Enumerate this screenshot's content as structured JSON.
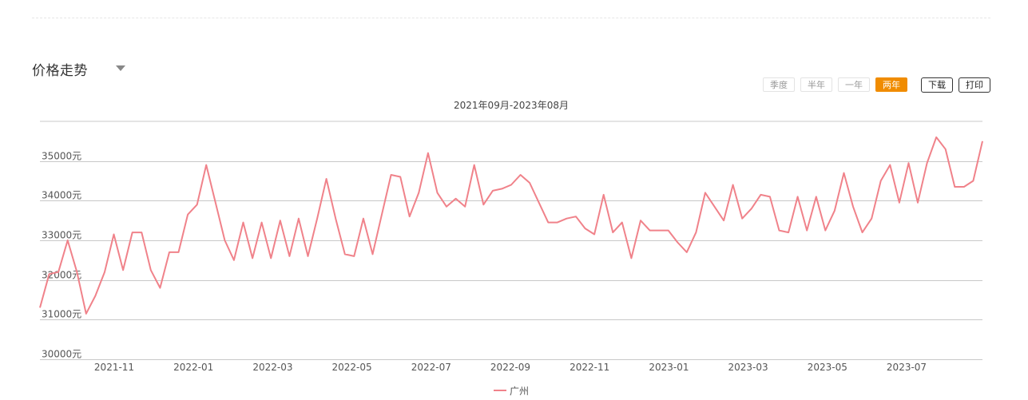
{
  "header": {
    "title": "价格走势"
  },
  "range_buttons": [
    {
      "label": "季度",
      "active": false
    },
    {
      "label": "半年",
      "active": false
    },
    {
      "label": "一年",
      "active": false
    },
    {
      "label": "两年",
      "active": true
    }
  ],
  "actions": {
    "download": "下载",
    "print": "打印"
  },
  "colors": {
    "accent": "#f08c00",
    "series": "#f0828a",
    "grid": "#c8c8c8"
  },
  "chart_data": {
    "type": "line",
    "title": "2021年09月-2023年08月",
    "xlabel": "",
    "ylabel": "",
    "y_ticks": [
      "30000元",
      "31000元",
      "32000元",
      "33000元",
      "34000元",
      "35000元"
    ],
    "y_tick_values": [
      30000,
      31000,
      32000,
      33000,
      34000,
      35000
    ],
    "ylim": [
      30000,
      36000
    ],
    "x_ticks": [
      "2021-11",
      "2022-01",
      "2022-03",
      "2022-05",
      "2022-07",
      "2022-09",
      "2022-11",
      "2023-01",
      "2023-03",
      "2023-05",
      "2023-07"
    ],
    "grid": true,
    "legend": "bottom-center",
    "series": [
      {
        "name": "广州",
        "color": "#f0828a",
        "values": [
          31300,
          32150,
          32200,
          33000,
          32200,
          31150,
          31600,
          32200,
          33150,
          32250,
          33200,
          33200,
          32250,
          31800,
          32700,
          32700,
          33650,
          33900,
          34900,
          33950,
          33000,
          32500,
          33450,
          32550,
          33450,
          32550,
          33500,
          32600,
          33550,
          32600,
          33550,
          34550,
          33550,
          32650,
          32600,
          33550,
          32650,
          33650,
          34650,
          34600,
          33600,
          34200,
          35200,
          34200,
          33850,
          34050,
          33850,
          34900,
          33900,
          34250,
          34300,
          34400,
          34650,
          34450,
          33950,
          33450,
          33450,
          33550,
          33600,
          33300,
          33150,
          34150,
          33200,
          33450,
          32550,
          33500,
          33250,
          33250,
          33250,
          32950,
          32700,
          33200,
          34200,
          33850,
          33500,
          34400,
          33550,
          33800,
          34150,
          34100,
          33250,
          33200,
          34100,
          33250,
          34100,
          33250,
          33750,
          34700,
          33850,
          33200,
          33550,
          34500,
          34900,
          33950,
          34950,
          33950,
          34950,
          35600,
          35300,
          34350,
          34350,
          34500,
          35500
        ]
      }
    ]
  }
}
